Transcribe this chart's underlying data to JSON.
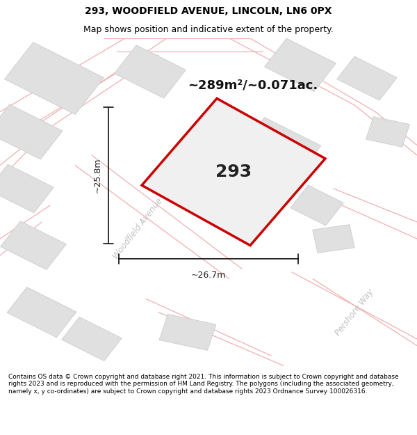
{
  "title": "293, WOODFIELD AVENUE, LINCOLN, LN6 0PX",
  "subtitle": "Map shows position and indicative extent of the property.",
  "area_label": "~289m²/~0.071ac.",
  "plot_number": "293",
  "dim_vertical": "~25.8m",
  "dim_horizontal": "~26.7m",
  "street_label_1": "Woodfield Avenue",
  "street_label_2": "Pershore Way",
  "footer": "Contains OS data © Crown copyright and database right 2021. This information is subject to Crown copyright and database rights 2023 and is reproduced with the permission of HM Land Registry. The polygons (including the associated geometry, namely x, y co-ordinates) are subject to Crown copyright and database rights 2023 Ordnance Survey 100026316.",
  "bg_color": "#ffffff",
  "map_bg": "#ffffff",
  "plot_fill": "#f0f0f0",
  "plot_edge": "#cc0000",
  "building_fill": "#e0e0e0",
  "building_edge": "#cccccc",
  "road_line_color": "#f0b0b0",
  "dim_line_color": "#111111",
  "title_fontsize": 10,
  "subtitle_fontsize": 9,
  "footer_fontsize": 6.5
}
